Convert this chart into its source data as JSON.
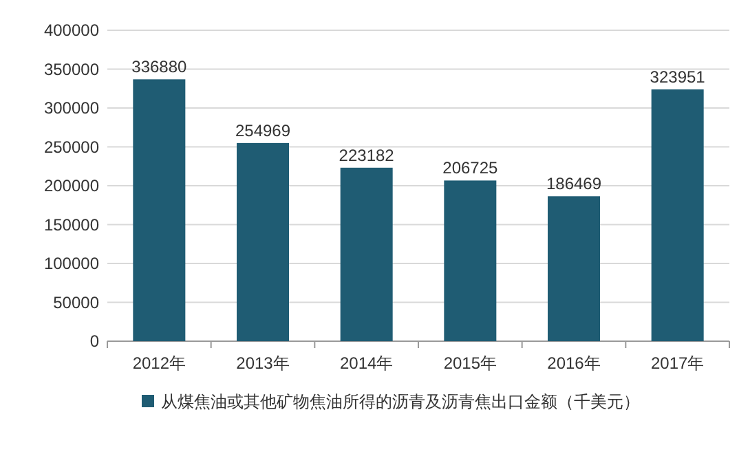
{
  "chart_data": {
    "type": "bar",
    "categories": [
      "2012年",
      "2013年",
      "2014年",
      "2015年",
      "2016年",
      "2017年"
    ],
    "series": [
      {
        "name": "从煤焦油或其他矿物焦油所得的沥青及沥青焦出口金额（千美元）",
        "color": "#1f5c73",
        "values": [
          336880,
          254969,
          223182,
          206725,
          186469,
          323951
        ]
      }
    ],
    "ylim": [
      0,
      400000
    ],
    "yticks": [
      0,
      50000,
      100000,
      150000,
      200000,
      250000,
      300000,
      350000,
      400000
    ],
    "grid": "y",
    "legend": "bottom",
    "data_labels": true
  }
}
